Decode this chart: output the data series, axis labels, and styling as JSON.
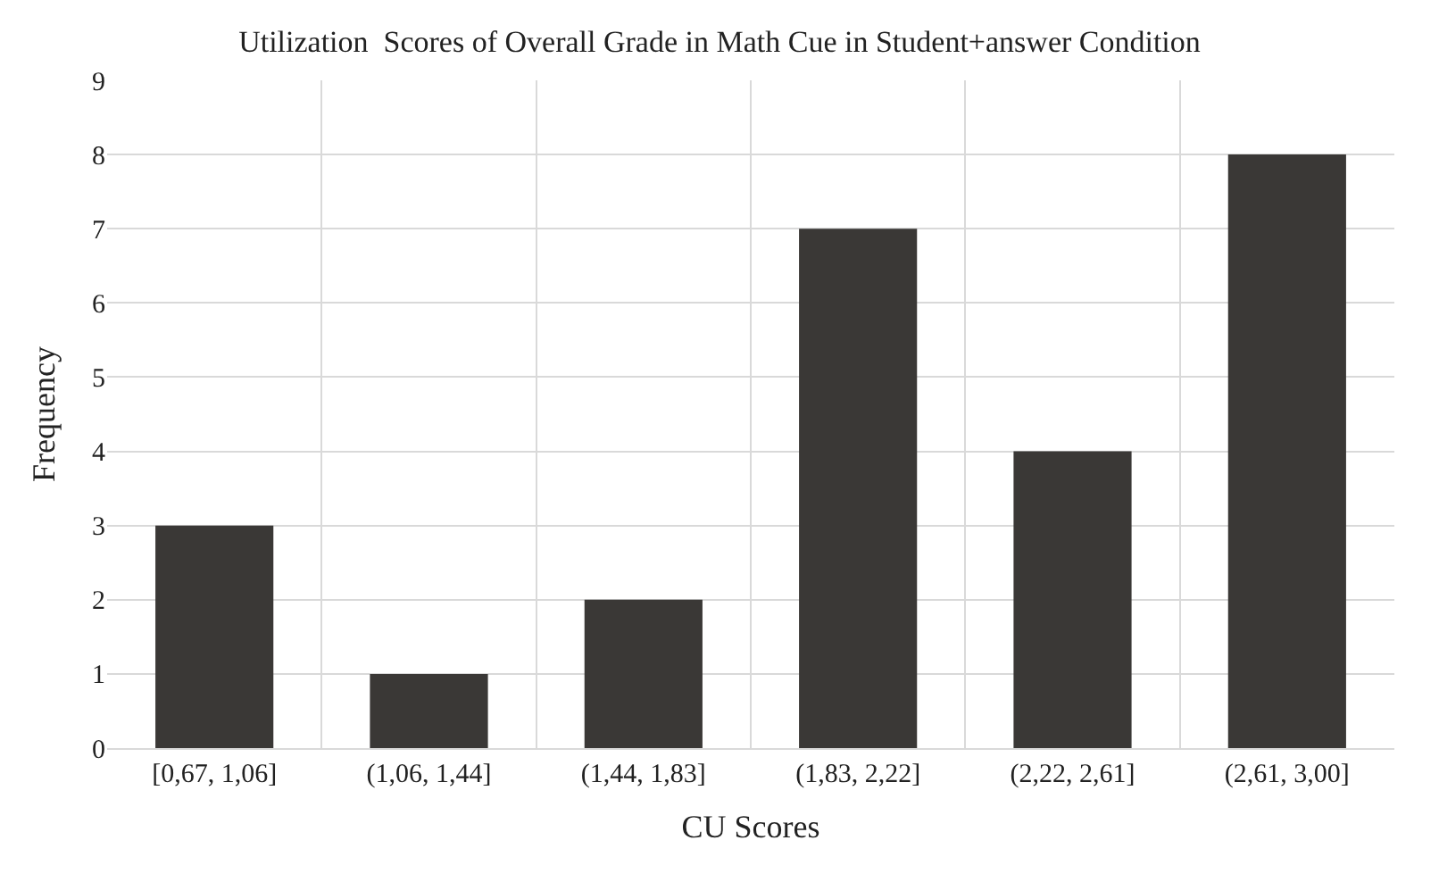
{
  "chart_data": {
    "type": "bar",
    "title": "Utilization  Scores of Overall Grade in Math Cue in Student+answer Condition",
    "xlabel": "CU Scores",
    "ylabel": "Frequency",
    "categories": [
      "[0,67, 1,06]",
      "(1,06, 1,44]",
      "(1,44, 1,83]",
      "(1,83, 2,22]",
      "(2,22, 2,61]",
      "(2,61, 3,00]"
    ],
    "values": [
      3,
      1,
      2,
      7,
      4,
      8
    ],
    "color": "#3a3836",
    "ylim": [
      0,
      9
    ],
    "yticks": [
      0,
      1,
      2,
      3,
      4,
      5,
      6,
      7,
      8,
      9
    ],
    "grid": true
  }
}
